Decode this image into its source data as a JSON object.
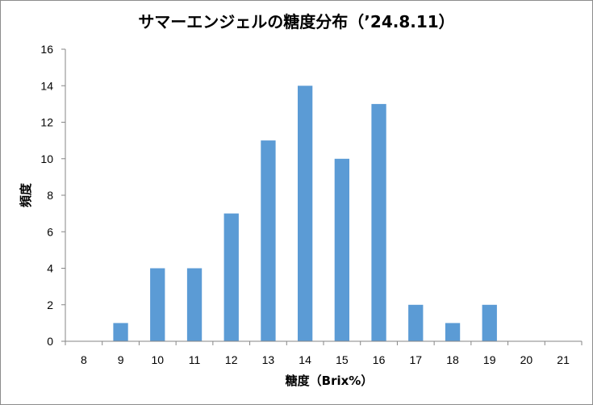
{
  "chart_data": {
    "type": "bar",
    "title": "サマーエンジェルの糖度分布（’24.8.11）",
    "xlabel": "糖度（Brix%）",
    "ylabel": "頻度",
    "categories": [
      "8",
      "9",
      "10",
      "11",
      "12",
      "13",
      "14",
      "15",
      "16",
      "17",
      "18",
      "19",
      "20",
      "21"
    ],
    "values": [
      0,
      1,
      4,
      4,
      7,
      11,
      14,
      10,
      13,
      2,
      1,
      2,
      0,
      0
    ],
    "ylim": [
      0,
      16
    ],
    "yticks": [
      0,
      2,
      4,
      6,
      8,
      10,
      12,
      14,
      16
    ],
    "grid": false,
    "legend": "none",
    "bar_color": "#5b9bd5"
  }
}
